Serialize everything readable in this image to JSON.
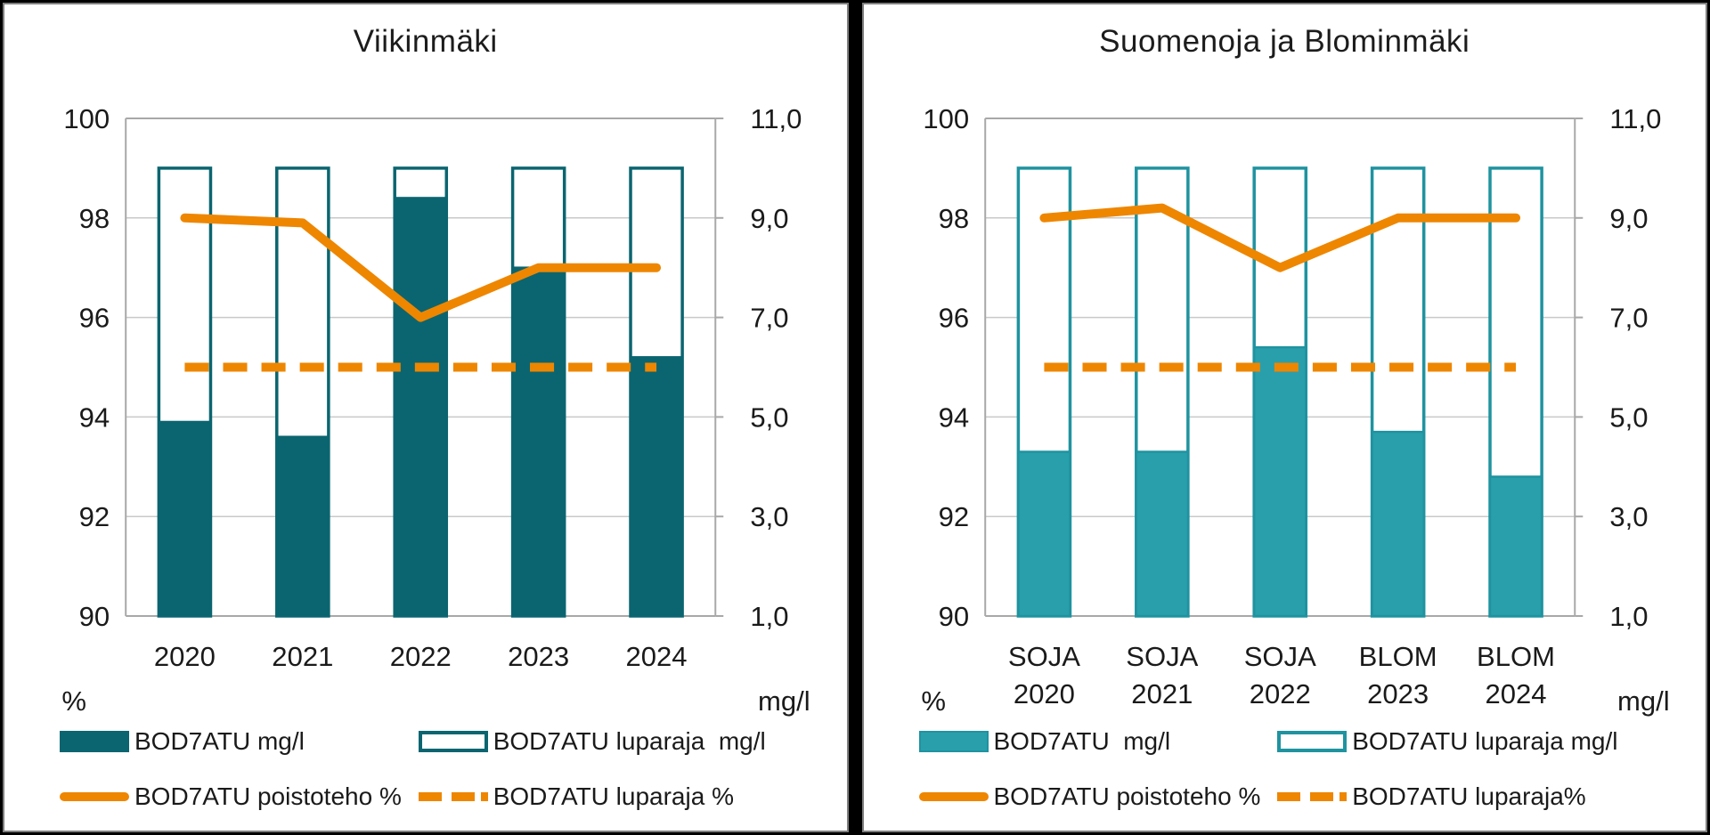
{
  "page": {
    "background": "#000000",
    "panel_background": "#ffffff",
    "panel_border": "#7f7f7f"
  },
  "chart_data": [
    {
      "type": "bar",
      "title": "Viikinmäki",
      "categories": [
        [
          "2020"
        ],
        [
          "2021"
        ],
        [
          "2022"
        ],
        [
          "2023"
        ],
        [
          "2024"
        ]
      ],
      "left_axis": {
        "unit": "%",
        "min": 90,
        "max": 100,
        "tick_values": [
          100,
          98,
          96,
          94,
          92,
          90
        ],
        "tick_labels": [
          "100",
          "98",
          "96",
          "94",
          "92",
          "90"
        ]
      },
      "right_axis": {
        "unit": "mg/l",
        "min": 1.0,
        "max": 11.0,
        "tick_values": [
          11,
          9,
          7,
          5,
          3,
          1
        ],
        "tick_labels": [
          "11,0",
          "9,0",
          "7,0",
          "5,0",
          "3,0",
          "1,0"
        ]
      },
      "grid": true,
      "legend_position": "bottom",
      "series": [
        {
          "name": "BOD7ATU mg/l",
          "kind": "bar-filled",
          "axis": "right",
          "values": [
            4.9,
            4.6,
            9.4,
            8.0,
            6.2
          ]
        },
        {
          "name": "BOD7ATU luparaja  mg/l",
          "kind": "bar-outline",
          "axis": "right",
          "values": [
            10.0,
            10.0,
            10.0,
            10.0,
            10.0
          ]
        },
        {
          "name": "BOD7ATU poistoteho %",
          "kind": "line-solid",
          "axis": "left",
          "values": [
            98.0,
            97.9,
            96.0,
            97.0,
            97.0
          ]
        },
        {
          "name": "BOD7ATU luparaja %",
          "kind": "line-dashed",
          "axis": "left",
          "values": [
            95.0,
            95.0,
            95.0,
            95.0,
            95.0
          ]
        }
      ],
      "colors": {
        "bar_fill": "#0b6570",
        "bar_stroke": "#0b6570",
        "line": "#ee8600",
        "grid": "#c9c9c9",
        "axis": "#a8a8a8",
        "text": "#1a1a1a"
      }
    },
    {
      "type": "bar",
      "title": "Suomenoja ja Blominmäki",
      "categories": [
        [
          "SOJA",
          "2020"
        ],
        [
          "SOJA",
          "2021"
        ],
        [
          "SOJA",
          "2022"
        ],
        [
          "BLOM",
          "2023"
        ],
        [
          "BLOM",
          "2024"
        ]
      ],
      "left_axis": {
        "unit": "%",
        "min": 90,
        "max": 100,
        "tick_values": [
          100,
          98,
          96,
          94,
          92,
          90
        ],
        "tick_labels": [
          "100",
          "98",
          "96",
          "94",
          "92",
          "90"
        ]
      },
      "right_axis": {
        "unit": "mg/l",
        "min": 1.0,
        "max": 11.0,
        "tick_values": [
          11,
          9,
          7,
          5,
          3,
          1
        ],
        "tick_labels": [
          "11,0",
          "9,0",
          "7,0",
          "5,0",
          "3,0",
          "1,0"
        ]
      },
      "grid": true,
      "legend_position": "bottom",
      "series": [
        {
          "name": "BOD7ATU  mg/l",
          "kind": "bar-filled",
          "axis": "right",
          "values": [
            4.3,
            4.3,
            6.4,
            4.7,
            3.8
          ]
        },
        {
          "name": "BOD7ATU luparaja mg/l",
          "kind": "bar-outline",
          "axis": "right",
          "values": [
            10.0,
            10.0,
            10.0,
            10.0,
            10.0
          ]
        },
        {
          "name": "BOD7ATU poistoteho %",
          "kind": "line-solid",
          "axis": "left",
          "values": [
            98.0,
            98.2,
            97.0,
            98.0,
            98.0
          ]
        },
        {
          "name": "BOD7ATU luparaja%",
          "kind": "line-dashed",
          "axis": "left",
          "values": [
            95.0,
            95.0,
            95.0,
            95.0,
            95.0
          ]
        }
      ],
      "colors": {
        "bar_fill": "#2a9fac",
        "bar_stroke": "#1f93a0",
        "line": "#ee8600",
        "grid": "#c9c9c9",
        "axis": "#a8a8a8",
        "text": "#1a1a1a"
      }
    }
  ]
}
